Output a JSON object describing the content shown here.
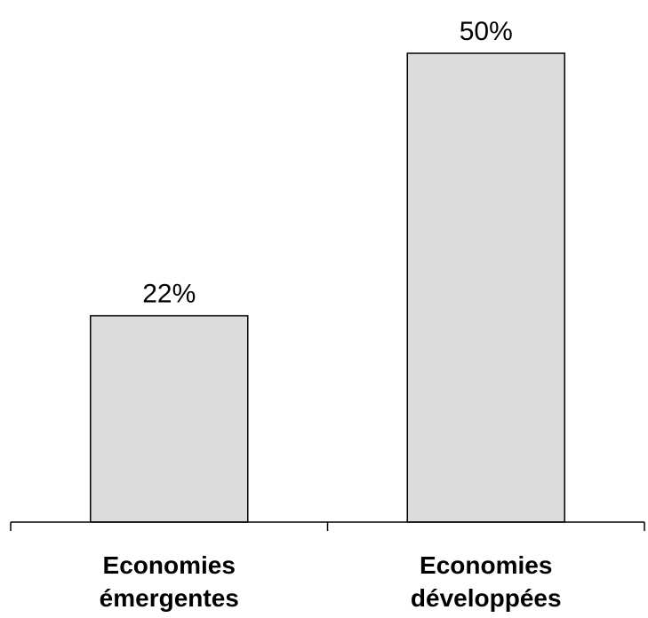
{
  "chart_data": {
    "type": "bar",
    "categories": [
      [
        "Economies",
        "émergentes"
      ],
      [
        "Economies",
        "développées"
      ]
    ],
    "values": [
      22,
      50
    ],
    "value_labels": [
      "22%",
      "50%"
    ],
    "ylim": [
      0,
      50
    ],
    "grid": false,
    "bar_color": "#dcdcdc",
    "edge_color": "#000000",
    "title": "",
    "xlabel": "",
    "ylabel": ""
  }
}
